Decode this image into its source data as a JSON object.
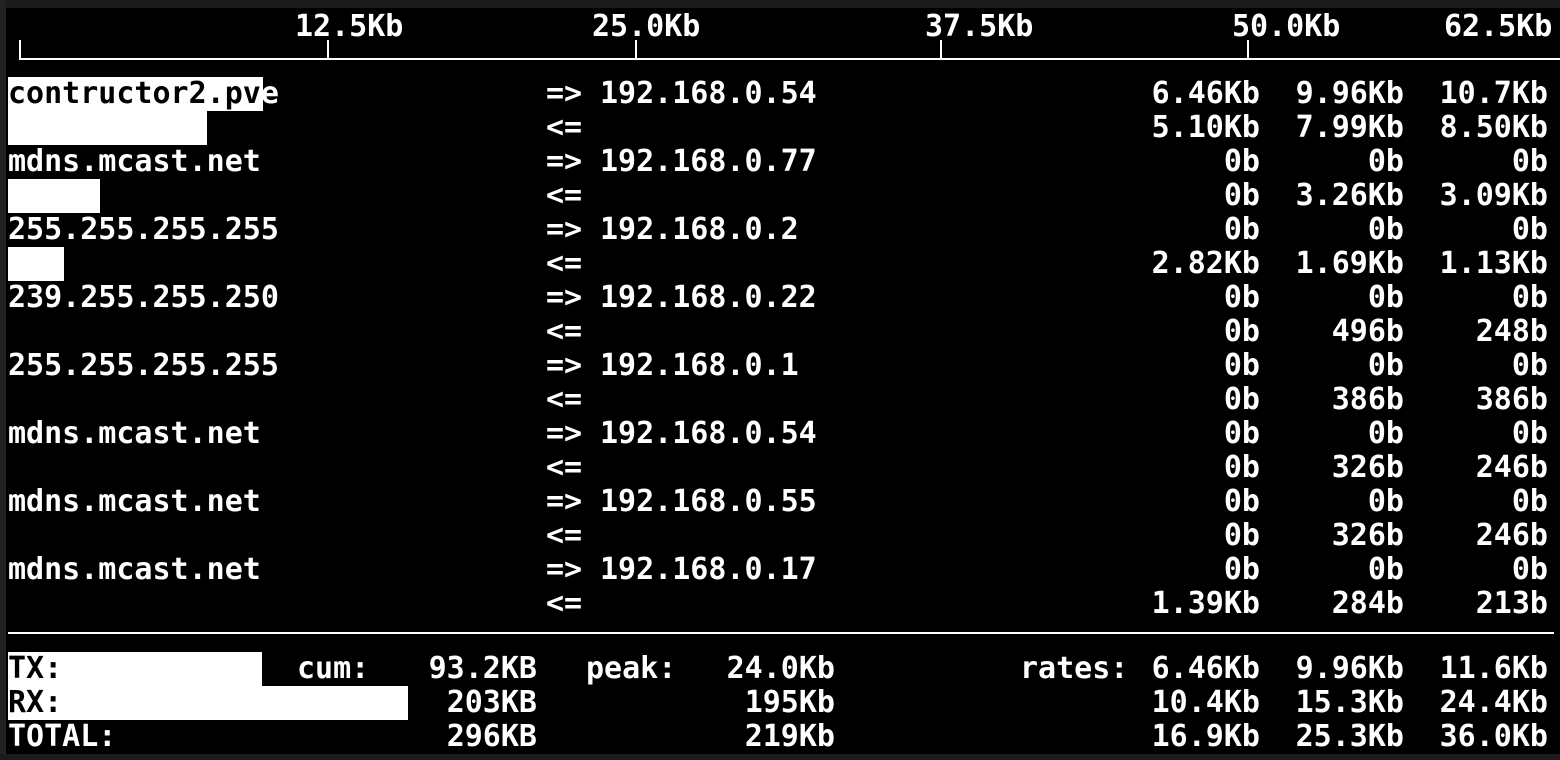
{
  "app": "iftop-bandwidth-monitor",
  "colors": {
    "background": "#000000",
    "text": "#ffffff",
    "bar": "#ffffff",
    "inverted_text": "#000000"
  },
  "labels": {
    "tx_arrow": "=>",
    "rx_arrow": "<="
  },
  "scale": {
    "labels": [
      "12.5Kb",
      "25.0Kb",
      "37.5Kb",
      "50.0Kb",
      "62.5Kb"
    ]
  },
  "connections": [
    {
      "host_hl": "contructor2.pv",
      "host_tail": "e",
      "peer": "192.168.0.54",
      "tx": {
        "r2": "6.46Kb",
        "r10": "9.96Kb",
        "r40": "10.7Kb"
      },
      "rx": {
        "r2": "5.10Kb",
        "r10": "7.99Kb",
        "r40": "8.50Kb"
      },
      "tx_bar": "255px",
      "rx_bar": "199px"
    },
    {
      "host_hl": "",
      "host_tail": "mdns.mcast.net",
      "peer": "192.168.0.77",
      "tx": {
        "r2": "0b",
        "r10": "0b",
        "r40": "0b"
      },
      "rx": {
        "r2": "0b",
        "r10": "3.26Kb",
        "r40": "3.09Kb"
      },
      "tx_bar": "0px",
      "rx_bar": "92px"
    },
    {
      "host_hl": "",
      "host_tail": "255.255.255.255",
      "peer": "192.168.0.2",
      "tx": {
        "r2": "0b",
        "r10": "0b",
        "r40": "0b"
      },
      "rx": {
        "r2": "2.82Kb",
        "r10": "1.69Kb",
        "r40": "1.13Kb"
      },
      "tx_bar": "0px",
      "rx_bar": "56px"
    },
    {
      "host_hl": "",
      "host_tail": "239.255.255.250",
      "peer": "192.168.0.22",
      "tx": {
        "r2": "0b",
        "r10": "0b",
        "r40": "0b"
      },
      "rx": {
        "r2": "0b",
        "r10": "496b",
        "r40": "248b"
      },
      "tx_bar": "0px",
      "rx_bar": "0px"
    },
    {
      "host_hl": "",
      "host_tail": "255.255.255.255",
      "peer": "192.168.0.1",
      "tx": {
        "r2": "0b",
        "r10": "0b",
        "r40": "0b"
      },
      "rx": {
        "r2": "0b",
        "r10": "386b",
        "r40": "386b"
      },
      "tx_bar": "0px",
      "rx_bar": "0px"
    },
    {
      "host_hl": "",
      "host_tail": "mdns.mcast.net",
      "peer": "192.168.0.54",
      "tx": {
        "r2": "0b",
        "r10": "0b",
        "r40": "0b"
      },
      "rx": {
        "r2": "0b",
        "r10": "326b",
        "r40": "246b"
      },
      "tx_bar": "0px",
      "rx_bar": "0px"
    },
    {
      "host_hl": "",
      "host_tail": "mdns.mcast.net",
      "peer": "192.168.0.55",
      "tx": {
        "r2": "0b",
        "r10": "0b",
        "r40": "0b"
      },
      "rx": {
        "r2": "0b",
        "r10": "326b",
        "r40": "246b"
      },
      "tx_bar": "0px",
      "rx_bar": "0px"
    },
    {
      "host_hl": "",
      "host_tail": "mdns.mcast.net",
      "peer": "192.168.0.17",
      "tx": {
        "r2": "0b",
        "r10": "0b",
        "r40": "0b"
      },
      "rx": {
        "r2": "1.39Kb",
        "r10": "284b",
        "r40": "213b"
      },
      "tx_bar": "0px",
      "rx_bar": "0px"
    }
  ],
  "footer": {
    "rows": [
      {
        "label": "TX:",
        "cum_label": "cum:",
        "cum": "93.2KB",
        "peak_label": "peak:",
        "peak": "24.0Kb",
        "rates_label": "rates:",
        "r2": "6.46Kb",
        "r10": "9.96Kb",
        "r40": "11.6Kb",
        "bar": "254px"
      },
      {
        "label": "RX:",
        "cum": "203KB",
        "peak": "195Kb",
        "r2": "10.4Kb",
        "r10": "15.3Kb",
        "r40": "24.4Kb",
        "bar": "400px"
      },
      {
        "label": "TOTAL:",
        "cum": "296KB",
        "peak": "219Kb",
        "r2": "16.9Kb",
        "r10": "25.3Kb",
        "r40": "36.0Kb",
        "bar": "0px"
      }
    ]
  }
}
